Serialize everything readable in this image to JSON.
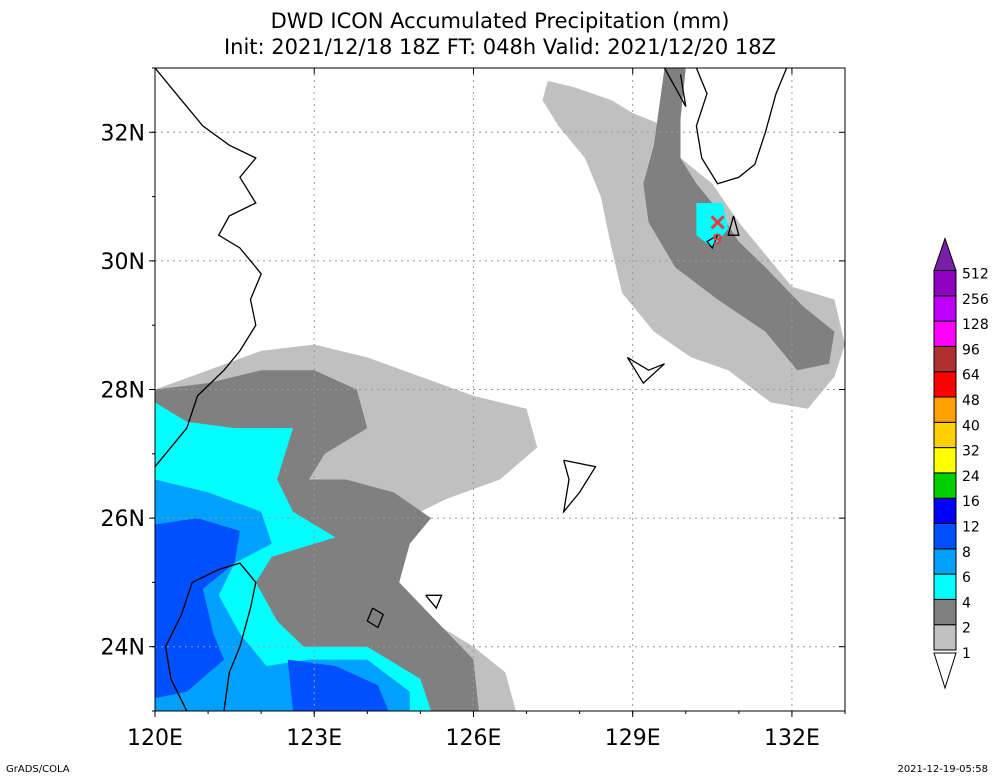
{
  "chart_data": {
    "type": "heatmap",
    "title": "DWD ICON Accumulated Precipitation (mm)",
    "subtitle": "Init: 2021/12/18 18Z  FT: 048h  Valid: 2021/12/20 18Z",
    "x_ticks": [
      {
        "value": 120,
        "label": "120E"
      },
      {
        "value": 123,
        "label": "123E"
      },
      {
        "value": 126,
        "label": "126E"
      },
      {
        "value": 129,
        "label": "129E"
      },
      {
        "value": 132,
        "label": "132E"
      }
    ],
    "y_ticks": [
      {
        "value": 24,
        "label": "24N"
      },
      {
        "value": 26,
        "label": "26N"
      },
      {
        "value": 28,
        "label": "28N"
      },
      {
        "value": 30,
        "label": "30N"
      },
      {
        "value": 32,
        "label": "32N"
      }
    ],
    "xlim": [
      120,
      133
    ],
    "ylim": [
      23,
      33
    ],
    "grid": true,
    "legend_placement": "right",
    "colorbar": [
      {
        "label": "1",
        "color": "#ffffff"
      },
      {
        "label": "2",
        "color": "#c0c0c0"
      },
      {
        "label": "4",
        "color": "#808080"
      },
      {
        "label": "6",
        "color": "#00ffff"
      },
      {
        "label": "8",
        "color": "#00a0ff"
      },
      {
        "label": "12",
        "color": "#0050ff"
      },
      {
        "label": "16",
        "color": "#0000ff"
      },
      {
        "label": "24",
        "color": "#00d000"
      },
      {
        "label": "32",
        "color": "#ffff00"
      },
      {
        "label": "40",
        "color": "#ffd000"
      },
      {
        "label": "48",
        "color": "#ffa000"
      },
      {
        "label": "64",
        "color": "#ff0000"
      },
      {
        "label": "96",
        "color": "#b03030"
      },
      {
        "label": "128",
        "color": "#ff00ff"
      },
      {
        "label": "256",
        "color": "#c000ff"
      },
      {
        "label": "512",
        "color": "#9000c0"
      }
    ],
    "colorbar_top_arrow_color": "#7a1fa8",
    "precip_regions": [
      {
        "color": "#c0c0c0",
        "points": [
          [
            120,
            28
          ],
          [
            121,
            28.3
          ],
          [
            122,
            28.6
          ],
          [
            123,
            28.7
          ],
          [
            124,
            28.5
          ],
          [
            125,
            28.2
          ],
          [
            126,
            27.9
          ],
          [
            127,
            27.7
          ],
          [
            127.2,
            27.1
          ],
          [
            126.5,
            26.6
          ],
          [
            125.5,
            26.3
          ],
          [
            124.5,
            25.9
          ],
          [
            124,
            25.2
          ],
          [
            125,
            24.5
          ],
          [
            126,
            24
          ],
          [
            126.6,
            23.6
          ],
          [
            126.8,
            23
          ],
          [
            120,
            23
          ]
        ]
      },
      {
        "color": "#808080",
        "points": [
          [
            120,
            28
          ],
          [
            121,
            28.1
          ],
          [
            122,
            28.3
          ],
          [
            123,
            28.3
          ],
          [
            123.8,
            28
          ],
          [
            124,
            27.4
          ],
          [
            123.2,
            27
          ],
          [
            122.9,
            26.6
          ],
          [
            123.6,
            26.6
          ],
          [
            124.5,
            26.4
          ],
          [
            125.2,
            26
          ],
          [
            124.8,
            25.6
          ],
          [
            124.6,
            25
          ],
          [
            125.3,
            24.4
          ],
          [
            126,
            23.8
          ],
          [
            126.1,
            23
          ],
          [
            120,
            23
          ]
        ]
      },
      {
        "color": "#00ffff",
        "points": [
          [
            120,
            27.8
          ],
          [
            120.6,
            27.5
          ],
          [
            121.5,
            27.4
          ],
          [
            122.6,
            27.4
          ],
          [
            122.3,
            26.6
          ],
          [
            122.6,
            26.1
          ],
          [
            123.4,
            25.7
          ],
          [
            122.2,
            25.4
          ],
          [
            121.9,
            25
          ],
          [
            122.3,
            24.4
          ],
          [
            122.8,
            24
          ],
          [
            124,
            24
          ],
          [
            125,
            23.5
          ],
          [
            125.2,
            23
          ],
          [
            120,
            23
          ]
        ]
      },
      {
        "color": "#00a0ff",
        "points": [
          [
            120,
            26.6
          ],
          [
            121,
            26.4
          ],
          [
            122,
            26.1
          ],
          [
            122.2,
            25.6
          ],
          [
            121.5,
            25.3
          ],
          [
            121.2,
            24.8
          ],
          [
            121.6,
            24.2
          ],
          [
            122.1,
            23.7
          ],
          [
            122.9,
            23.8
          ],
          [
            124,
            23.8
          ],
          [
            124.8,
            23.3
          ],
          [
            124.8,
            23
          ],
          [
            120,
            23
          ]
        ]
      },
      {
        "color": "#0050ff",
        "points": [
          [
            120,
            25.9
          ],
          [
            120.8,
            26
          ],
          [
            121.6,
            25.8
          ],
          [
            121.5,
            25.3
          ],
          [
            120.9,
            24.9
          ],
          [
            121.1,
            24.2
          ],
          [
            121.3,
            23.8
          ],
          [
            120.6,
            23.3
          ],
          [
            120,
            23.2
          ]
        ]
      },
      {
        "color": "#0050ff",
        "points": [
          [
            122.5,
            23.8
          ],
          [
            123.4,
            23.7
          ],
          [
            124.2,
            23.4
          ],
          [
            124.4,
            23
          ],
          [
            122.6,
            23
          ]
        ]
      },
      {
        "color": "#c0c0c0",
        "points": [
          [
            127.4,
            32.8
          ],
          [
            127.9,
            32.7
          ],
          [
            128.6,
            32.5
          ],
          [
            129,
            32.3
          ],
          [
            129.6,
            32.1
          ],
          [
            129.9,
            31.6
          ],
          [
            130.5,
            31.2
          ],
          [
            131,
            30.6
          ],
          [
            131.6,
            30
          ],
          [
            132,
            29.6
          ],
          [
            132.8,
            29.4
          ],
          [
            133,
            28.7
          ],
          [
            132.8,
            28.2
          ],
          [
            132.3,
            27.7
          ],
          [
            131.6,
            27.8
          ],
          [
            130.8,
            28.3
          ],
          [
            130.1,
            28.5
          ],
          [
            129.4,
            28.9
          ],
          [
            128.8,
            29.5
          ],
          [
            128.6,
            30.2
          ],
          [
            128.4,
            31
          ],
          [
            128.1,
            31.6
          ],
          [
            127.6,
            32.1
          ],
          [
            127.3,
            32.5
          ]
        ]
      },
      {
        "color": "#808080",
        "points": [
          [
            129.6,
            33
          ],
          [
            130,
            33
          ],
          [
            129.9,
            32.2
          ],
          [
            129.9,
            31.6
          ],
          [
            130.2,
            31.2
          ],
          [
            130.6,
            30.8
          ],
          [
            131,
            30.3
          ],
          [
            131.5,
            29.9
          ],
          [
            132.2,
            29.3
          ],
          [
            132.8,
            28.9
          ],
          [
            132.7,
            28.4
          ],
          [
            132.1,
            28.3
          ],
          [
            131.5,
            28.9
          ],
          [
            130.6,
            29.4
          ],
          [
            129.8,
            29.9
          ],
          [
            129.3,
            30.6
          ],
          [
            129.2,
            31.2
          ],
          [
            129.4,
            31.8
          ]
        ]
      },
      {
        "color": "#00ffff",
        "points": [
          [
            130.2,
            30.9
          ],
          [
            130.7,
            30.9
          ],
          [
            130.8,
            30.5
          ],
          [
            130.5,
            30.2
          ],
          [
            130.2,
            30.4
          ]
        ]
      }
    ],
    "coastlines": [
      [
        [
          120,
          33
        ],
        [
          120.5,
          32.5
        ],
        [
          120.9,
          32.1
        ],
        [
          121.4,
          31.8
        ],
        [
          121.9,
          31.6
        ],
        [
          121.6,
          31.3
        ],
        [
          121.9,
          30.9
        ],
        [
          121.4,
          30.7
        ],
        [
          121.2,
          30.4
        ],
        [
          121.6,
          30.2
        ],
        [
          122,
          29.8
        ],
        [
          121.8,
          29.4
        ],
        [
          121.9,
          29
        ],
        [
          121.6,
          28.6
        ],
        [
          121.3,
          28.3
        ],
        [
          120.8,
          27.9
        ],
        [
          120.6,
          27.4
        ],
        [
          120.2,
          27
        ],
        [
          120,
          26.8
        ]
      ],
      [
        [
          120.7,
          25
        ],
        [
          121.2,
          25.2
        ],
        [
          121.6,
          25.3
        ],
        [
          121.9,
          25
        ],
        [
          121.8,
          24.6
        ],
        [
          121.6,
          24
        ],
        [
          121.4,
          23.6
        ],
        [
          121.3,
          23
        ]
      ],
      [
        [
          120.6,
          23
        ],
        [
          120.3,
          23.5
        ],
        [
          120.2,
          24
        ],
        [
          120.5,
          24.5
        ],
        [
          120.7,
          25
        ]
      ],
      [
        [
          130.2,
          33
        ],
        [
          130.4,
          32.6
        ],
        [
          130.2,
          32.1
        ],
        [
          130.3,
          31.6
        ],
        [
          130.6,
          31.2
        ],
        [
          131,
          31.3
        ],
        [
          131.3,
          31.5
        ],
        [
          131.5,
          32
        ],
        [
          131.7,
          32.6
        ],
        [
          131.9,
          33
        ]
      ],
      [
        [
          129.6,
          33
        ],
        [
          129.8,
          32.7
        ],
        [
          130,
          32.4
        ],
        [
          129.9,
          32.9
        ]
      ],
      [
        [
          130.9,
          30.7
        ],
        [
          131,
          30.4
        ],
        [
          130.8,
          30.4
        ],
        [
          130.9,
          30.7
        ]
      ],
      [
        [
          130.6,
          30.4
        ],
        [
          130.4,
          30.3
        ],
        [
          130.5,
          30.2
        ],
        [
          130.6,
          30.4
        ]
      ],
      [
        [
          128.9,
          28.5
        ],
        [
          129.3,
          28.3
        ],
        [
          129.6,
          28.4
        ],
        [
          129.2,
          28.1
        ],
        [
          128.9,
          28.5
        ]
      ],
      [
        [
          127.7,
          26.9
        ],
        [
          128.3,
          26.8
        ],
        [
          128.0,
          26.4
        ],
        [
          127.7,
          26.1
        ],
        [
          127.8,
          26.6
        ],
        [
          127.7,
          26.9
        ]
      ],
      [
        [
          125.1,
          24.8
        ],
        [
          125.4,
          24.8
        ],
        [
          125.3,
          24.6
        ],
        [
          125.1,
          24.8
        ]
      ],
      [
        [
          124.1,
          24.6
        ],
        [
          124.3,
          24.5
        ],
        [
          124.2,
          24.3
        ],
        [
          124.0,
          24.4
        ],
        [
          124.1,
          24.6
        ]
      ]
    ],
    "marker": {
      "label": "9",
      "lon": 130.6,
      "lat": 30.6,
      "color": "#e04040"
    }
  },
  "footer": {
    "left": "GrADS/COLA",
    "right": "2021-12-19-05:58"
  }
}
